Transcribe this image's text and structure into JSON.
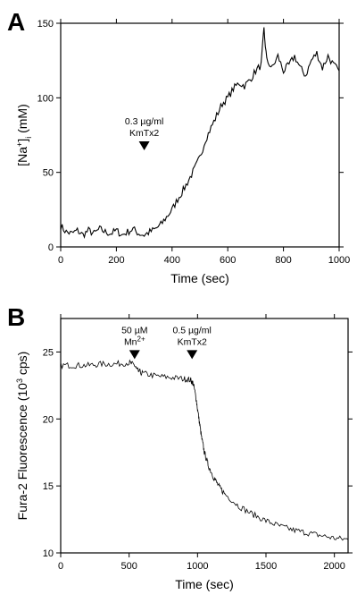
{
  "chart_data": [
    {
      "type": "line",
      "panel_label": "A",
      "xlabel": "Time  (sec)",
      "ylabel": "[Na⁺]ᵢ  (mM)",
      "ylabel_parts": {
        "prefix": "[Na",
        "sup": "+",
        "close": "]",
        "sub": "i",
        "unit": "  (mM)"
      },
      "xlim": [
        0,
        1000
      ],
      "ylim": [
        0,
        150
      ],
      "xticks": [
        0,
        200,
        400,
        600,
        800,
        1000
      ],
      "yticks": [
        0,
        50,
        100,
        150
      ],
      "grid": false,
      "series": [
        {
          "x": [
            0,
            20,
            40,
            60,
            80,
            100,
            120,
            140,
            160,
            180,
            200,
            220,
            240,
            260,
            280,
            300,
            320,
            340,
            360,
            380,
            400,
            420,
            440,
            460,
            480,
            500,
            520,
            540,
            560,
            580,
            600,
            620,
            640,
            660,
            680,
            700,
            720,
            730,
            740,
            760,
            780,
            800,
            820,
            840,
            860,
            880,
            900,
            920,
            940,
            960,
            980,
            1000
          ],
          "y": [
            14,
            10,
            9,
            11,
            8,
            11,
            9,
            12,
            10,
            9,
            11,
            8,
            10,
            12,
            9,
            8,
            10,
            12,
            15,
            20,
            25,
            32,
            38,
            45,
            52,
            60,
            72,
            80,
            88,
            96,
            100,
            106,
            110,
            108,
            112,
            118,
            122,
            146,
            125,
            120,
            128,
            118,
            122,
            128,
            120,
            115,
            125,
            130,
            120,
            128,
            122,
            118
          ]
        }
      ],
      "annotations": [
        {
          "lines": [
            "0.3 µg/ml",
            "KmTx2"
          ],
          "x": 300,
          "y": 66
        }
      ]
    },
    {
      "type": "line",
      "panel_label": "B",
      "xlabel": "Time  (sec)",
      "ylabel": "Fura-2 Fluorescence  (10³ cps)",
      "ylabel_parts": {
        "prefix": "Fura-2 Fluorescence  (10",
        "sup": "3",
        "unit": " cps)"
      },
      "xlim": [
        0,
        2100
      ],
      "ylim": [
        10,
        27.5
      ],
      "xticks": [
        0,
        500,
        1000,
        1500,
        2000
      ],
      "yticks": [
        10,
        15,
        20,
        25
      ],
      "grid": false,
      "series": [
        {
          "x": [
            0,
            100,
            200,
            300,
            400,
            500,
            540,
            560,
            600,
            700,
            800,
            900,
            950,
            970,
            990,
            1010,
            1030,
            1050,
            1080,
            1120,
            1160,
            1200,
            1300,
            1400,
            1500,
            1600,
            1700,
            1800,
            1900,
            2000,
            2100
          ],
          "y": [
            24.0,
            24.0,
            24.0,
            24.1,
            24.1,
            24.2,
            24.0,
            23.6,
            23.4,
            23.2,
            23.1,
            23.0,
            22.9,
            22.6,
            21.5,
            20.0,
            18.6,
            17.5,
            16.5,
            15.6,
            14.9,
            14.4,
            13.5,
            12.9,
            12.4,
            12.0,
            11.7,
            11.5,
            11.3,
            11.1,
            11.0
          ]
        }
      ],
      "annotations": [
        {
          "lines": [
            "50 µM",
            "Mn²⁺"
          ],
          "line_parts": [
            [
              "50 µM"
            ],
            [
              "Mn",
              "2+"
            ]
          ],
          "x": 540,
          "y": 24.6
        },
        {
          "lines": [
            "0.5 µg/ml",
            "KmTx2"
          ],
          "x": 960,
          "y": 24.6
        }
      ]
    }
  ]
}
